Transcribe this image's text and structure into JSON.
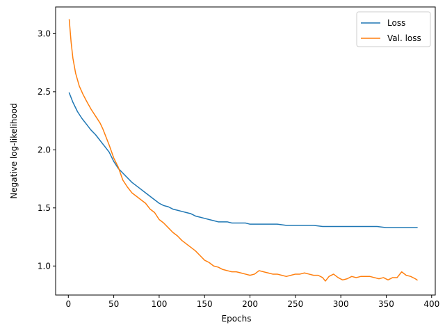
{
  "chart_data": {
    "type": "line",
    "xlabel": "Epochs",
    "ylabel": "Negative log-likelihood",
    "xlim": [
      -14,
      404
    ],
    "ylim": [
      0.75,
      3.23
    ],
    "x_ticks": [
      0,
      50,
      100,
      150,
      200,
      250,
      300,
      350,
      400
    ],
    "y_ticks": [
      1.0,
      1.5,
      2.0,
      2.5,
      3.0
    ],
    "x_tick_labels": [
      "0",
      "50",
      "100",
      "150",
      "200",
      "250",
      "300",
      "350",
      "400"
    ],
    "y_tick_labels": [
      "1.0",
      "1.5",
      "2.0",
      "2.5",
      "3.0"
    ],
    "grid": false,
    "legend_position": "top-right",
    "series": [
      {
        "name": "Loss",
        "color": "#1f77b4",
        "x": [
          1,
          5,
          10,
          15,
          20,
          25,
          30,
          35,
          40,
          45,
          50,
          55,
          60,
          65,
          70,
          75,
          80,
          85,
          90,
          95,
          100,
          105,
          110,
          115,
          120,
          125,
          130,
          135,
          140,
          145,
          150,
          155,
          160,
          165,
          170,
          175,
          180,
          185,
          190,
          195,
          200,
          210,
          220,
          230,
          240,
          250,
          260,
          270,
          280,
          290,
          300,
          310,
          320,
          330,
          340,
          350,
          360,
          370,
          380,
          384
        ],
        "y": [
          2.49,
          2.41,
          2.33,
          2.27,
          2.22,
          2.17,
          2.13,
          2.08,
          2.03,
          1.98,
          1.9,
          1.84,
          1.8,
          1.76,
          1.72,
          1.69,
          1.66,
          1.63,
          1.6,
          1.57,
          1.54,
          1.52,
          1.51,
          1.49,
          1.48,
          1.47,
          1.46,
          1.45,
          1.43,
          1.42,
          1.41,
          1.4,
          1.39,
          1.38,
          1.38,
          1.38,
          1.37,
          1.37,
          1.37,
          1.37,
          1.36,
          1.36,
          1.36,
          1.36,
          1.35,
          1.35,
          1.35,
          1.35,
          1.34,
          1.34,
          1.34,
          1.34,
          1.34,
          1.34,
          1.34,
          1.33,
          1.33,
          1.33,
          1.33,
          1.33
        ]
      },
      {
        "name": "Val. loss",
        "color": "#ff7f0e",
        "x": [
          1,
          3,
          5,
          8,
          12,
          16,
          20,
          25,
          30,
          35,
          38,
          42,
          45,
          50,
          55,
          60,
          65,
          70,
          75,
          80,
          85,
          90,
          95,
          100,
          105,
          110,
          115,
          120,
          125,
          130,
          135,
          140,
          145,
          150,
          155,
          160,
          165,
          170,
          175,
          180,
          185,
          190,
          195,
          200,
          205,
          210,
          215,
          220,
          225,
          230,
          235,
          240,
          245,
          250,
          255,
          260,
          265,
          270,
          275,
          280,
          283,
          287,
          292,
          297,
          302,
          307,
          312,
          317,
          322,
          327,
          332,
          337,
          342,
          347,
          352,
          357,
          362,
          367,
          372,
          377,
          382,
          384
        ],
        "y": [
          3.12,
          2.93,
          2.79,
          2.66,
          2.55,
          2.48,
          2.42,
          2.35,
          2.29,
          2.23,
          2.18,
          2.1,
          2.04,
          1.93,
          1.85,
          1.74,
          1.68,
          1.63,
          1.6,
          1.57,
          1.54,
          1.49,
          1.46,
          1.4,
          1.37,
          1.33,
          1.29,
          1.26,
          1.22,
          1.19,
          1.16,
          1.13,
          1.09,
          1.05,
          1.03,
          1.0,
          0.99,
          0.97,
          0.96,
          0.95,
          0.95,
          0.94,
          0.93,
          0.92,
          0.93,
          0.96,
          0.95,
          0.94,
          0.93,
          0.93,
          0.92,
          0.91,
          0.92,
          0.93,
          0.93,
          0.94,
          0.93,
          0.92,
          0.92,
          0.9,
          0.87,
          0.91,
          0.93,
          0.9,
          0.88,
          0.89,
          0.91,
          0.9,
          0.91,
          0.91,
          0.91,
          0.9,
          0.89,
          0.9,
          0.88,
          0.9,
          0.9,
          0.95,
          0.92,
          0.91,
          0.89,
          0.88
        ]
      }
    ]
  }
}
